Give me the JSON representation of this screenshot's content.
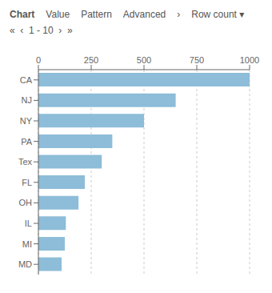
{
  "chart_data": {
    "type": "bar",
    "orientation": "horizontal",
    "categories": [
      "CA",
      "NJ",
      "NY",
      "PA",
      "Tex",
      "FL",
      "OH",
      "IL",
      "MI",
      "MD"
    ],
    "values": [
      1000,
      650,
      500,
      350,
      300,
      220,
      190,
      130,
      125,
      110
    ],
    "color": "#8DBDD8",
    "xlim": [
      0,
      1000
    ],
    "xticks": [
      0,
      250,
      500,
      750,
      1000
    ],
    "grid": true,
    "annotations": [
      "Chart",
      "Value",
      "Pattern",
      "Advanced",
      "›",
      "Row count ▾",
      "«  ‹  1 - 10  ›  »"
    ]
  }
}
